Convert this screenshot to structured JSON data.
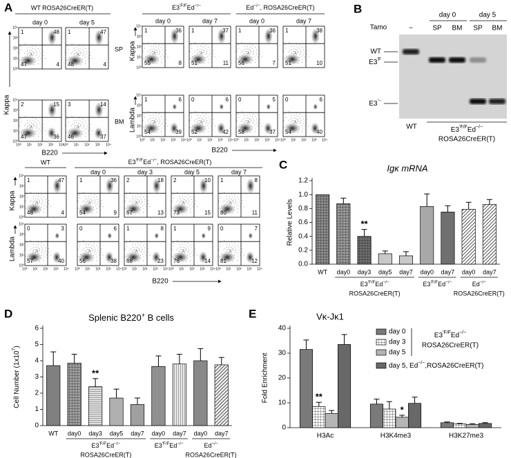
{
  "panel_letters": [
    "A",
    "B",
    "C",
    "D",
    "E"
  ],
  "flow": {
    "ticks": [
      "10⁰",
      "10¹",
      "10²",
      "10³",
      "10⁴"
    ],
    "top_left": {
      "title": "WT ROSA26CreER(T)",
      "days": [
        "day 0",
        "day 5"
      ],
      "rows": [
        "SP",
        "BM"
      ],
      "y_label": "Kappa",
      "x_label": "B220",
      "plots": [
        [
          [
            1,
            48,
            47,
            4
          ],
          [
            1,
            47,
            48,
            4
          ]
        ],
        [
          [
            2,
            15,
            47,
            36
          ],
          [
            3,
            14,
            46,
            37
          ]
        ]
      ]
    },
    "top_right": {
      "titles": [
        [
          "E3",
          "′F/F",
          "Ed",
          "−/−"
        ],
        [
          "Ed",
          "−/−",
          ", ROSA26CreER(T)"
        ]
      ],
      "days": [
        "day 0",
        "day 7",
        "day 0",
        "day 7"
      ],
      "y_labels": [
        "Kappa",
        "Lambda"
      ],
      "x_label": "B220",
      "plots": [
        [
          [
            1,
            36,
            55,
            8
          ],
          [
            1,
            37,
            51,
            11
          ],
          [
            1,
            36,
            56,
            7
          ],
          [
            1,
            38,
            51,
            10
          ]
        ],
        [
          [
            1,
            6,
            54,
            39
          ],
          [
            0,
            6,
            52,
            42
          ],
          [
            0,
            5,
            58,
            37
          ],
          [
            0,
            6,
            54,
            40
          ]
        ]
      ]
    },
    "bottom": {
      "titles": [
        "WT",
        [
          "E3",
          "′F/F",
          "Ed",
          "−/−",
          ", ROSA26CreER(T)"
        ]
      ],
      "days": [
        "day 0",
        "day 3",
        "day 5",
        "day 7"
      ],
      "y_labels": [
        "Kappa",
        "Lambda"
      ],
      "x_label": "B220",
      "plots": [
        [
          [
            1,
            47,
            48,
            4
          ],
          [
            1,
            36,
            54,
            9
          ],
          [
            2,
            18,
            67,
            13
          ],
          [
            2,
            10,
            73,
            15
          ],
          [
            1,
            8,
            80,
            11
          ]
        ],
        [
          [
            0,
            3,
            57,
            40
          ],
          [
            0,
            6,
            56,
            38
          ],
          [
            1,
            8,
            68,
            23
          ],
          [
            1,
            9,
            76,
            14
          ],
          [
            0,
            7,
            81,
            12
          ]
        ]
      ]
    }
  },
  "gel": {
    "tamo": "Tamo",
    "lanes": [
      "−",
      "SP",
      "BM",
      "SP",
      "BM"
    ],
    "days": [
      "day 0",
      "day 5"
    ],
    "bands": [
      "WT",
      [
        "E3",
        "′F"
      ],
      [
        "E3",
        "′−"
      ]
    ],
    "bottom": {
      "control": "WT",
      "label": [
        "E3",
        "′F/F",
        "Ed",
        "−/−"
      ],
      "sublabel": "ROSA26CreER(T)"
    }
  },
  "chart_data": [
    {
      "type": "bar",
      "title": "Igκ mRNA",
      "y_label": "Relative Levels",
      "categories": [
        "WT",
        "day0",
        "day3",
        "day5",
        "day7",
        "day0",
        "day7",
        "day0",
        "day7"
      ],
      "values": [
        1,
        0.87,
        0.4,
        0.15,
        0.12,
        0.83,
        0.75,
        0.79,
        0.86
      ],
      "errors": [
        null,
        0.08,
        0.1,
        0.04,
        0.06,
        0.18,
        0.09,
        0.1,
        0.07
      ],
      "colors": [
        "#8c8c8c",
        "#9a9a9a",
        "#6e6e6e",
        "#c8c8c8",
        "#c8c8c8",
        "#a8a8a8",
        "#707070",
        "#ffffff",
        "#ffffff"
      ],
      "patterns": [
        "crosshatch",
        "crosshatch",
        "crosshatch",
        "none",
        "none",
        "none",
        "none",
        "diagonal",
        "diagonal"
      ],
      "ylim": [
        0,
        1.2
      ],
      "yticks": [
        {
          "value": 0,
          "label": "0.0"
        },
        0.2,
        0.4,
        0.6,
        0.8,
        {
          "value": 1,
          "label": "1.0"
        },
        1.2
      ],
      "groups": [
        {
          "label": [
            "E3",
            "′F/F",
            "Ed",
            "−/−"
          ],
          "sublabel": "ROSA26CreER(T)"
        },
        {
          "label": [
            "E3",
            "′F/F",
            "Ed",
            "−/−"
          ]
        },
        {
          "label": [
            "Ed",
            "−/−"
          ],
          "sublabel": "ROSA26CreER(T)"
        }
      ],
      "annotations": [
        "**"
      ]
    },
    {
      "type": "bar",
      "title": [
        "Splenic B220",
        "+",
        " B cells"
      ],
      "y_label": [
        "Cell Number (1x10",
        "7",
        ")"
      ],
      "categories": [
        "WT",
        "day0",
        "day3",
        "day5",
        "day7",
        "day0",
        "day7",
        "day0",
        "day7"
      ],
      "values": [
        3.7,
        3.85,
        2.4,
        1.7,
        1.3,
        3.65,
        3.8,
        4,
        3.75
      ],
      "errors": [
        0.85,
        0.55,
        0.5,
        0.55,
        0.4,
        0.65,
        0.6,
        0.75,
        0.45
      ],
      "colors": [
        "#808080",
        "#a0a0a0",
        "#e0e0e0",
        "#b0b0b0",
        "#a0a0a0",
        "#909090",
        "#e8e8e8",
        "#888888",
        "#f0f0f0"
      ],
      "patterns": [
        "none",
        "crosshatch",
        "hstripes",
        "none",
        "none",
        "none",
        "vstripes",
        "none",
        "diagonal"
      ],
      "ylim": [
        0,
        6
      ],
      "yticks": [
        0,
        1,
        2,
        3,
        4,
        5,
        6
      ],
      "groups": [
        {
          "label": [
            "E3",
            "′F/F",
            "Ed",
            "−/−"
          ],
          "sublabel": "ROSA26CreER(T)"
        },
        {
          "label": [
            "E3",
            "′F/F",
            "Ed",
            "−/−"
          ]
        },
        {
          "label": [
            "Ed",
            "−/−"
          ],
          "sublabel": "ROSA26CreER(T)"
        }
      ],
      "annotations": [
        "**"
      ]
    },
    {
      "type": "bar",
      "title": "Vκ-Jκ1",
      "y_label": "Fold Enrichment",
      "categories": [
        "H3Ac",
        "H3K4me3",
        "H3K27me3"
      ],
      "series": [
        {
          "name": "day 0",
          "color": "#7a7a7a",
          "pattern": "none",
          "values": [
            31.5,
            9.5,
            2
          ],
          "errors": [
            3.8,
            2,
            0.3
          ]
        },
        {
          "name": "day 3",
          "color": "#ffffff",
          "pattern": "crosshatch",
          "values": [
            8.5,
            7.5,
            1.5
          ],
          "errors": [
            1.7,
            3,
            0.2
          ]
        },
        {
          "name": "day 5",
          "color": "#b5b5b5",
          "pattern": "none",
          "values": [
            5.7,
            4.2,
            1.3
          ],
          "errors": [
            1.2,
            0.8,
            0.3
          ]
        },
        {
          "name": [
            "day 5, Ed",
            "−/−",
            ",ROSA26CreER(T)"
          ],
          "color": "#686868",
          "pattern": "none",
          "values": [
            33.5,
            9.8,
            1.7
          ],
          "errors": [
            4,
            2.5,
            0.3
          ]
        }
      ],
      "legend_group": {
        "label": [
          "E3",
          "′F/F",
          "Ed",
          "−/−"
        ],
        "sublabel": "ROSA26CreER(T)"
      },
      "ylim": [
        0,
        40
      ],
      "yticks": [
        0,
        10,
        20,
        30,
        40
      ],
      "annotations": [
        "**",
        "*"
      ]
    }
  ]
}
